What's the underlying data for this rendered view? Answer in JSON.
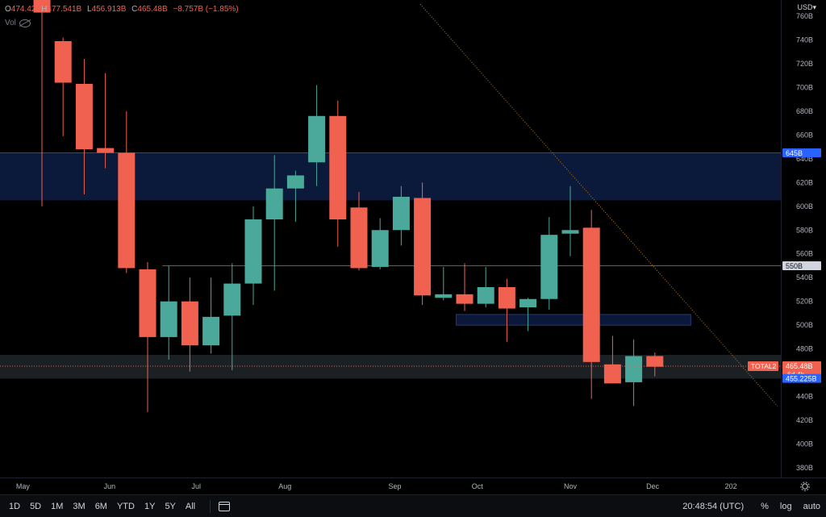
{
  "legend": {
    "open_label": "O",
    "open": "474.42",
    "high_label": "H",
    "high": "477.541B",
    "low_label": "L",
    "low": "456.913B",
    "close_label": "C",
    "close": "465.48B",
    "change": "−8.757B (−1.85%)",
    "vol_label": "Vol"
  },
  "currency": "USD",
  "colors": {
    "up": "#4aa99a",
    "down": "#f0614f",
    "zone": "#0c1a3e",
    "blue": "#2962ff",
    "bg": "#000000"
  },
  "chart_data": {
    "type": "candlestick",
    "ylim": [
      372,
      770
    ],
    "y_ticks": [
      "760B",
      "740B",
      "720B",
      "700B",
      "680B",
      "660B",
      "640B",
      "620B",
      "600B",
      "580B",
      "560B",
      "540B",
      "520B",
      "500B",
      "480B",
      "460B",
      "440B",
      "420B",
      "400B",
      "380B"
    ],
    "x_labels": [
      {
        "label": "May",
        "i": -0.9
      },
      {
        "label": "Jun",
        "i": 3.2
      },
      {
        "label": "Jul",
        "i": 7.3
      },
      {
        "label": "Aug",
        "i": 11.5
      },
      {
        "label": "Sep",
        "i": 16.7
      },
      {
        "label": "Oct",
        "i": 20.6
      },
      {
        "label": "Nov",
        "i": 25.0
      },
      {
        "label": "Dec",
        "i": 28.9
      },
      {
        "label": "202",
        "i": 32.6
      }
    ],
    "candles": [
      {
        "o": 790,
        "h": 800,
        "l": 600,
        "c": 763
      },
      {
        "o": 739,
        "h": 742,
        "l": 659,
        "c": 704
      },
      {
        "o": 703,
        "h": 724,
        "l": 610,
        "c": 648
      },
      {
        "o": 649,
        "h": 712,
        "l": 632,
        "c": 645
      },
      {
        "o": 645,
        "h": 680,
        "l": 544,
        "c": 548
      },
      {
        "o": 547,
        "h": 553,
        "l": 427,
        "c": 490
      },
      {
        "o": 490,
        "h": 550,
        "l": 471,
        "c": 520
      },
      {
        "o": 520,
        "h": 540,
        "l": 461,
        "c": 483
      },
      {
        "o": 483,
        "h": 540,
        "l": 476,
        "c": 507
      },
      {
        "o": 508,
        "h": 552,
        "l": 462,
        "c": 535
      },
      {
        "o": 535,
        "h": 600,
        "l": 517,
        "c": 589
      },
      {
        "o": 589,
        "h": 643,
        "l": 529,
        "c": 615
      },
      {
        "o": 615,
        "h": 630,
        "l": 587,
        "c": 626
      },
      {
        "o": 637,
        "h": 702,
        "l": 617,
        "c": 676
      },
      {
        "o": 676,
        "h": 689,
        "l": 566,
        "c": 589
      },
      {
        "o": 599,
        "h": 612,
        "l": 546,
        "c": 548
      },
      {
        "o": 549,
        "h": 590,
        "l": 547,
        "c": 580
      },
      {
        "o": 580,
        "h": 617,
        "l": 567,
        "c": 608
      },
      {
        "o": 607,
        "h": 620,
        "l": 517,
        "c": 525
      },
      {
        "o": 523,
        "h": 549,
        "l": 521,
        "c": 526
      },
      {
        "o": 526,
        "h": 552,
        "l": 512,
        "c": 518
      },
      {
        "o": 518,
        "h": 549,
        "l": 515,
        "c": 532
      },
      {
        "o": 532,
        "h": 539,
        "l": 486,
        "c": 514
      },
      {
        "o": 515,
        "h": 523,
        "l": 495,
        "c": 522
      },
      {
        "o": 522,
        "h": 591,
        "l": 513,
        "c": 576
      },
      {
        "o": 577,
        "h": 617,
        "l": 558,
        "c": 580
      },
      {
        "o": 582,
        "h": 597,
        "l": 438,
        "c": 469
      },
      {
        "o": 467,
        "h": 491,
        "l": 451,
        "c": 451
      },
      {
        "o": 452,
        "h": 488,
        "l": 432,
        "c": 474
      },
      {
        "o": 474,
        "h": 477,
        "l": 457,
        "c": 465
      }
    ],
    "zones": [
      {
        "top": 645,
        "bottom": 605,
        "i0": -2.2,
        "i1": 35.2,
        "color": "#0c1a3e"
      },
      {
        "top": 509,
        "bottom": 500,
        "i0": 19.6,
        "i1": 30.7,
        "color": "#0c1a3e"
      },
      {
        "top": 475,
        "bottom": 455,
        "i0": -2.2,
        "i1": 35.2,
        "color": "#1c2226"
      }
    ],
    "hlines": [
      {
        "y": 550,
        "i0": 5.7,
        "i1": 35.2
      },
      {
        "y": 645,
        "i0": -2.2,
        "i1": 35.2
      }
    ],
    "trendline": {
      "from": {
        "i": 17.9,
        "y": 770
      },
      "to": {
        "i": 34.8,
        "y": 432
      }
    },
    "price_tags": [
      {
        "label": "645B",
        "y": 645,
        "style": "blue"
      },
      {
        "label": "550B",
        "y": 550,
        "style": "grey"
      },
      {
        "label": "465.48B",
        "y": 465.48,
        "style": "red",
        "extra": "6d 4h"
      },
      {
        "label": "455.225B",
        "y": 455.225,
        "style": "blue"
      }
    ],
    "symbol_tag": "TOTAL2",
    "current_price": 465.48
  },
  "toolbar": {
    "timeframes": [
      "1D",
      "5D",
      "1M",
      "3M",
      "6M",
      "YTD",
      "1Y",
      "5Y",
      "All"
    ],
    "clock": "20:48:54 (UTC)",
    "percent": "%",
    "log": "log",
    "auto": "auto"
  }
}
